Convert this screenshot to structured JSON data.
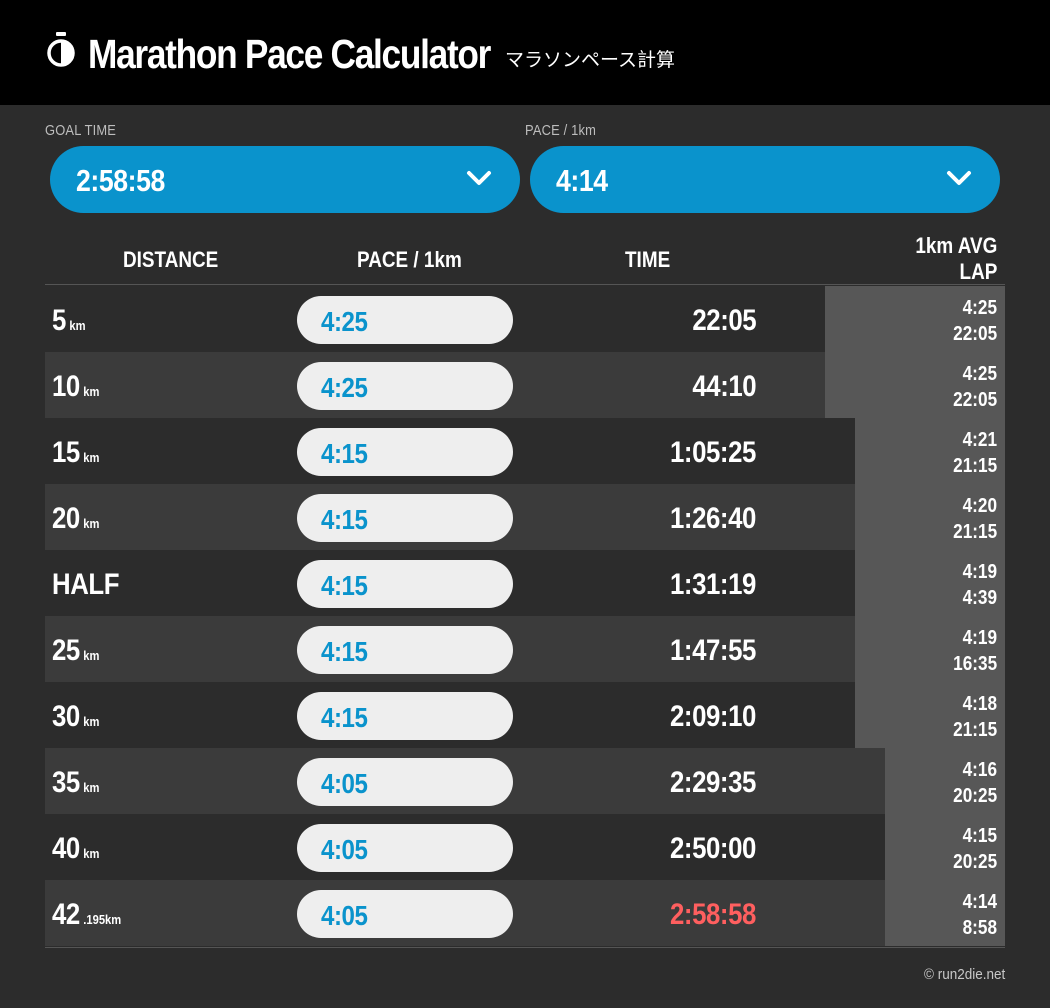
{
  "header": {
    "title": "Marathon Pace Calculator",
    "subtitle": "マラソンペース計算",
    "logo_icon": "stopwatch-icon"
  },
  "goal_time": {
    "label": "GOAL TIME",
    "value": "2:58:58",
    "icon": "chevron-down-icon"
  },
  "pace_select": {
    "label": "PACE / 1km",
    "value": "4:14",
    "icon": "chevron-down-icon"
  },
  "table": {
    "columns": {
      "distance": "DISTANCE",
      "pace": "PACE / 1km",
      "time": "TIME",
      "lap_line1": "1km AVG",
      "lap_line2": "LAP"
    },
    "rows": [
      {
        "distance": "5",
        "unit": "km",
        "pace": "4:25",
        "time": "22:05",
        "avg": "4:25",
        "lap": "22:05"
      },
      {
        "distance": "10",
        "unit": "km",
        "pace": "4:25",
        "time": "44:10",
        "avg": "4:25",
        "lap": "22:05"
      },
      {
        "distance": "15",
        "unit": "km",
        "pace": "4:15",
        "time": "1:05:25",
        "avg": "4:21",
        "lap": "21:15"
      },
      {
        "distance": "20",
        "unit": "km",
        "pace": "4:15",
        "time": "1:26:40",
        "avg": "4:20",
        "lap": "21:15"
      },
      {
        "distance": "HALF",
        "unit": "",
        "pace": "4:15",
        "time": "1:31:19",
        "avg": "4:19",
        "lap": "4:39"
      },
      {
        "distance": "25",
        "unit": "km",
        "pace": "4:15",
        "time": "1:47:55",
        "avg": "4:19",
        "lap": "16:35"
      },
      {
        "distance": "30",
        "unit": "km",
        "pace": "4:15",
        "time": "2:09:10",
        "avg": "4:18",
        "lap": "21:15"
      },
      {
        "distance": "35",
        "unit": "km",
        "pace": "4:05",
        "time": "2:29:35",
        "avg": "4:16",
        "lap": "20:25"
      },
      {
        "distance": "40",
        "unit": "km",
        "pace": "4:05",
        "time": "2:50:00",
        "avg": "4:15",
        "lap": "20:25"
      },
      {
        "distance": "42",
        "unit": ".195km",
        "pace": "4:05",
        "time": "2:58:58",
        "avg": "4:14",
        "lap": "8:58"
      }
    ]
  },
  "footer": {
    "copyright": "© run2die.net"
  },
  "colors": {
    "accent": "#0a93cc",
    "goal_time_highlight": "#ff5f5f",
    "header_bg": "#000000",
    "page_bg": "#2c2c2c"
  }
}
